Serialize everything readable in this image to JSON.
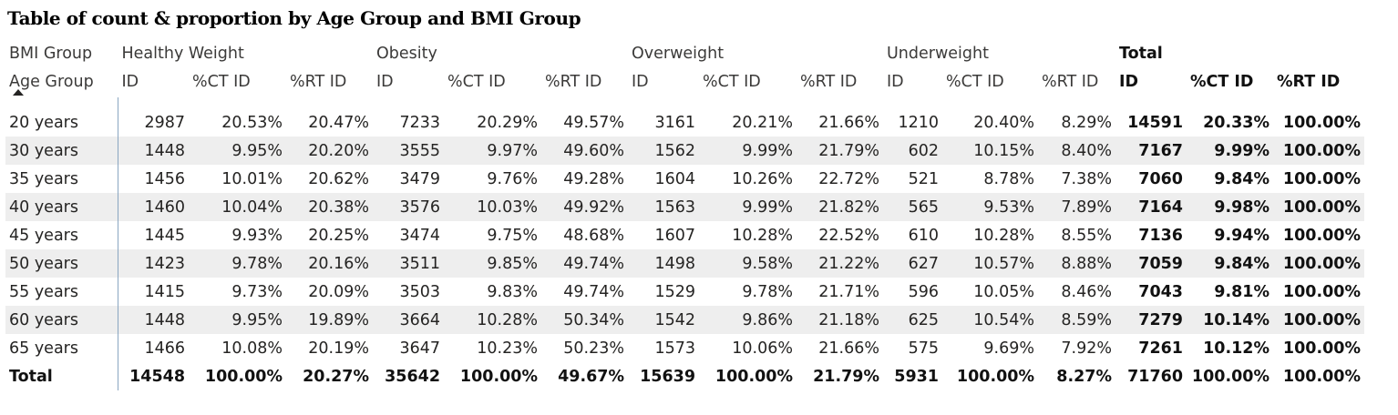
{
  "chart_data": {
    "type": "table",
    "title": "Table of count & proportion by Age Group and BMI Group",
    "column_field_label": "BMI Group",
    "row_field_label": "Age Group",
    "groups": [
      {
        "name": "Healthy Weight",
        "measures": [
          "ID",
          "%CT ID",
          "%RT ID"
        ]
      },
      {
        "name": "Obesity",
        "measures": [
          "ID",
          "%CT ID",
          "%RT ID"
        ]
      },
      {
        "name": "Overweight",
        "measures": [
          "ID",
          "%CT ID",
          "%RT ID"
        ]
      },
      {
        "name": "Underweight",
        "measures": [
          "ID",
          "%CT ID",
          "%RT ID"
        ]
      },
      {
        "name": "Total",
        "measures": [
          "ID",
          "%CT ID",
          "%RT ID"
        ]
      }
    ],
    "rows": [
      {
        "label": "20 years",
        "cells": [
          "2987",
          "20.53%",
          "20.47%",
          "7233",
          "20.29%",
          "49.57%",
          "3161",
          "20.21%",
          "21.66%",
          "1210",
          "20.40%",
          "8.29%",
          "14591",
          "20.33%",
          "100.00%"
        ]
      },
      {
        "label": "30 years",
        "cells": [
          "1448",
          "9.95%",
          "20.20%",
          "3555",
          "9.97%",
          "49.60%",
          "1562",
          "9.99%",
          "21.79%",
          "602",
          "10.15%",
          "8.40%",
          "7167",
          "9.99%",
          "100.00%"
        ]
      },
      {
        "label": "35 years",
        "cells": [
          "1456",
          "10.01%",
          "20.62%",
          "3479",
          "9.76%",
          "49.28%",
          "1604",
          "10.26%",
          "22.72%",
          "521",
          "8.78%",
          "7.38%",
          "7060",
          "9.84%",
          "100.00%"
        ]
      },
      {
        "label": "40 years",
        "cells": [
          "1460",
          "10.04%",
          "20.38%",
          "3576",
          "10.03%",
          "49.92%",
          "1563",
          "9.99%",
          "21.82%",
          "565",
          "9.53%",
          "7.89%",
          "7164",
          "9.98%",
          "100.00%"
        ]
      },
      {
        "label": "45 years",
        "cells": [
          "1445",
          "9.93%",
          "20.25%",
          "3474",
          "9.75%",
          "48.68%",
          "1607",
          "10.28%",
          "22.52%",
          "610",
          "10.28%",
          "8.55%",
          "7136",
          "9.94%",
          "100.00%"
        ]
      },
      {
        "label": "50 years",
        "cells": [
          "1423",
          "9.78%",
          "20.16%",
          "3511",
          "9.85%",
          "49.74%",
          "1498",
          "9.58%",
          "21.22%",
          "627",
          "10.57%",
          "8.88%",
          "7059",
          "9.84%",
          "100.00%"
        ]
      },
      {
        "label": "55 years",
        "cells": [
          "1415",
          "9.73%",
          "20.09%",
          "3503",
          "9.83%",
          "49.74%",
          "1529",
          "9.78%",
          "21.71%",
          "596",
          "10.05%",
          "8.46%",
          "7043",
          "9.81%",
          "100.00%"
        ]
      },
      {
        "label": "60 years",
        "cells": [
          "1448",
          "9.95%",
          "19.89%",
          "3664",
          "10.28%",
          "50.34%",
          "1542",
          "9.86%",
          "21.18%",
          "625",
          "10.54%",
          "8.59%",
          "7279",
          "10.14%",
          "100.00%"
        ]
      },
      {
        "label": "65 years",
        "cells": [
          "1466",
          "10.08%",
          "20.19%",
          "3647",
          "10.23%",
          "50.23%",
          "1573",
          "10.06%",
          "21.66%",
          "575",
          "9.69%",
          "7.92%",
          "7261",
          "10.12%",
          "100.00%"
        ]
      }
    ],
    "total_row": {
      "label": "Total",
      "cells": [
        "14548",
        "100.00%",
        "20.27%",
        "35642",
        "100.00%",
        "49.67%",
        "15639",
        "100.00%",
        "21.79%",
        "5931",
        "100.00%",
        "8.27%",
        "71760",
        "100.00%",
        "100.00%"
      ]
    },
    "sort": {
      "column": "Age Group",
      "direction": "ascending"
    },
    "colors": {
      "row_band": "#eeeeee",
      "divider": "#8aa6c1",
      "text": "#252423"
    }
  }
}
